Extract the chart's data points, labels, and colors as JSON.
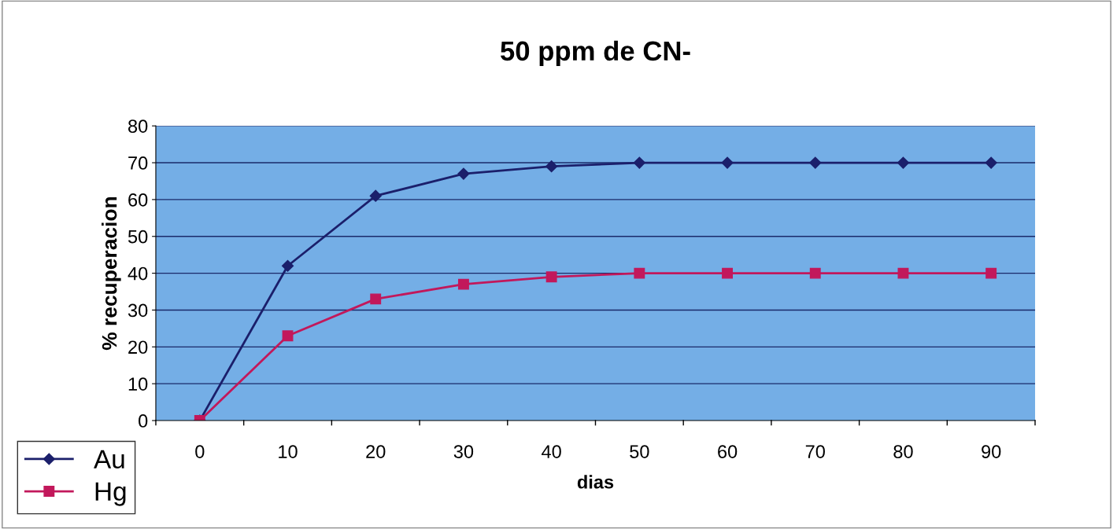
{
  "chart_data": {
    "type": "line",
    "title": "50 ppm de CN-",
    "xlabel": "dias",
    "ylabel": "% recuperacion",
    "categories": [
      "0",
      "10",
      "20",
      "30",
      "40",
      "50",
      "60",
      "70",
      "80",
      "90"
    ],
    "series": [
      {
        "name": "Au",
        "color": "#1b1f6b",
        "marker": "diamond",
        "values": [
          0,
          42,
          61,
          67,
          69,
          70,
          70,
          70,
          70,
          70
        ]
      },
      {
        "name": "Hg",
        "color": "#c2185b",
        "marker": "square",
        "values": [
          0,
          23,
          33,
          37,
          39,
          40,
          40,
          40,
          40,
          40
        ]
      }
    ],
    "ylim": [
      0,
      80
    ],
    "yticks": [
      0,
      10,
      20,
      30,
      40,
      50,
      60,
      70,
      80
    ],
    "grid": "y",
    "legend": "bottom left",
    "line_style": "solid"
  }
}
